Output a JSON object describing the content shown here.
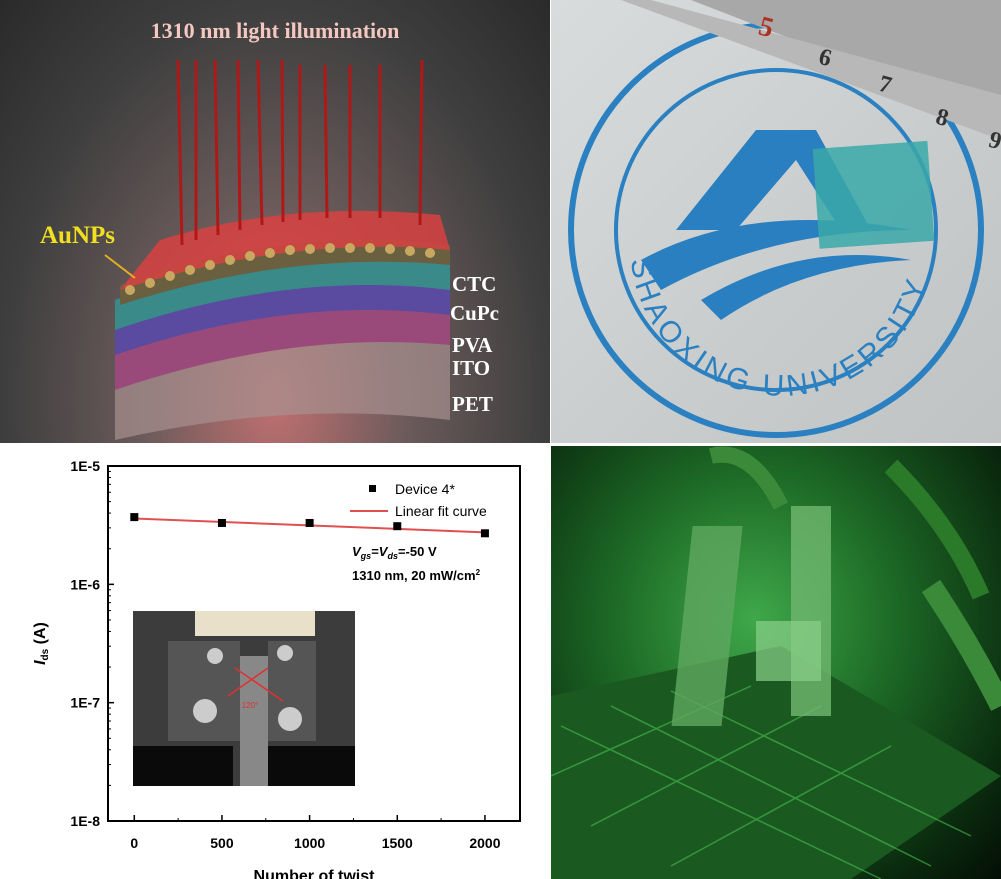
{
  "panel_a": {
    "title": "1310 nm light illumination",
    "nanoparticle_label": "AuNPs",
    "layers": [
      "CTC",
      "CuPc",
      "PVA",
      "ITO",
      "PET"
    ]
  },
  "panel_b": {
    "ruler_numbers": [
      "5",
      "6",
      "7",
      "8",
      "9"
    ],
    "logo_text": "SHAOXING UNIVERSITY"
  },
  "panel_d": {
    "description_visible_text": ""
  },
  "chart_data": {
    "type": "scatter",
    "xlabel": "Number of twist",
    "ylabel": "I_ds (A)",
    "ylabel_main": "I",
    "ylabel_sub": "ds",
    "ylabel_unit": " (A)",
    "yscale": "log",
    "xlim": [
      -150,
      2200
    ],
    "ylim": [
      1e-08,
      1e-05
    ],
    "xticks": [
      0,
      500,
      1000,
      1500,
      2000
    ],
    "xtick_labels": [
      "0",
      "500",
      "1000",
      "1500",
      "2000"
    ],
    "yticks": [
      1e-05,
      1e-06,
      1e-07,
      1e-08
    ],
    "ytick_labels": [
      "1E-5",
      "1E-6",
      "1E-7",
      "1E-8"
    ],
    "series": [
      {
        "name": "Device 4*",
        "kind": "scatter",
        "color": "#000000",
        "x": [
          0,
          500,
          1000,
          1500,
          2000
        ],
        "y": [
          3.7e-06,
          3.3e-06,
          3.3e-06,
          3.1e-06,
          2.7e-06
        ]
      },
      {
        "name": "Linear fit curve",
        "kind": "line",
        "color": "#e05050",
        "x": [
          0,
          2000
        ],
        "y": [
          3.6e-06,
          2.75e-06
        ]
      }
    ],
    "legend_placement": "top-right",
    "annotation_line1": "V_gs=V_ds=-50 V",
    "annotation_parts": {
      "v1": "V",
      "s1": "gs",
      "eq": "=",
      "v2": "V",
      "s2": "ds",
      "rest": "=-50 V"
    },
    "annotation_line2": "1310 nm, 20 mW/cm",
    "annotation_sup": "2",
    "inset_angle_label": "120°"
  }
}
